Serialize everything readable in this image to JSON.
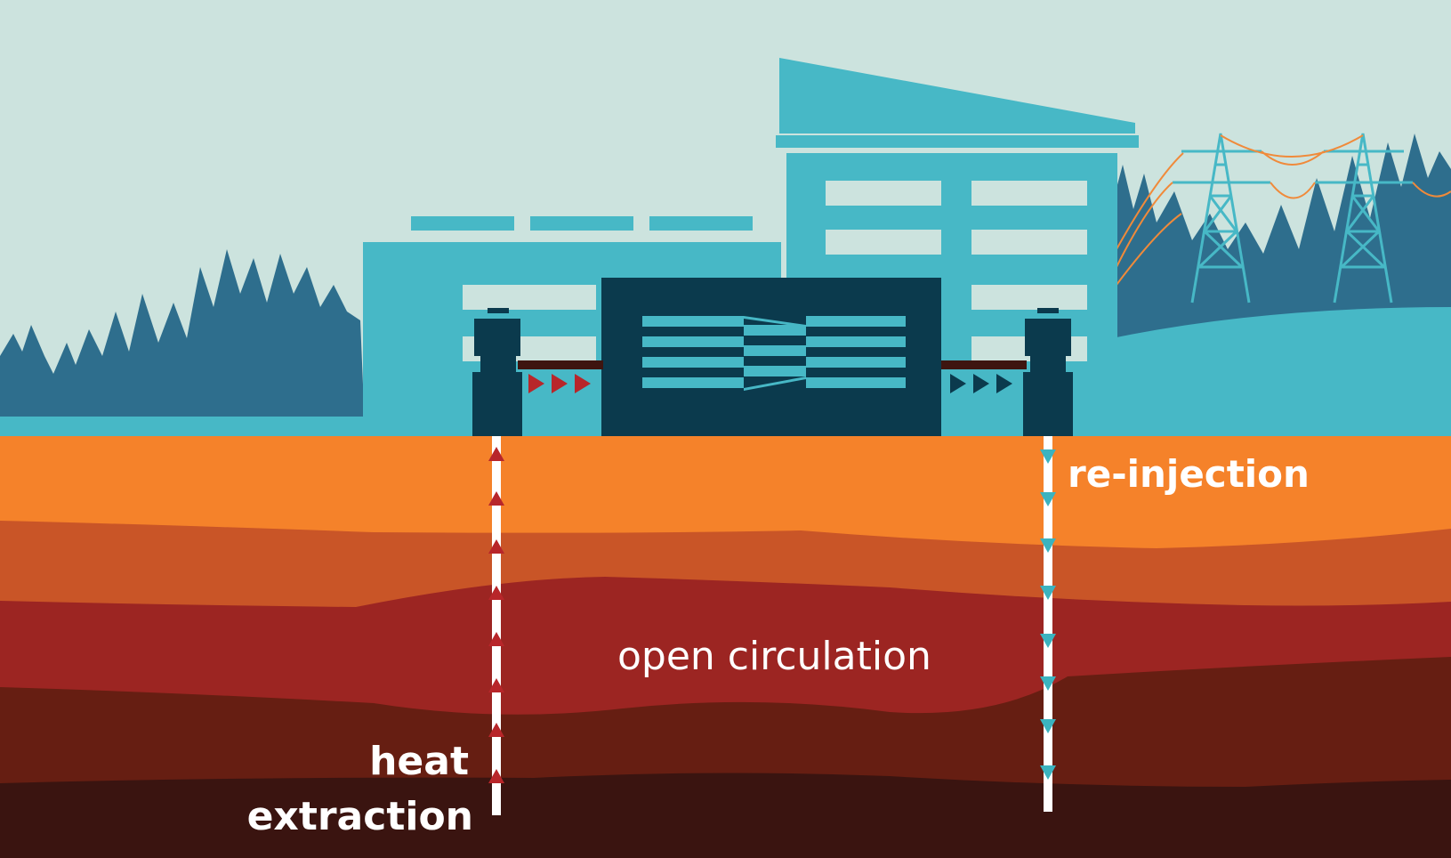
{
  "labels": {
    "reinjection": "re-injection",
    "open_circulation": "open circulation",
    "heat": "heat",
    "extraction": "extraction"
  },
  "colors": {
    "sky": "#cce3de",
    "building_light": "#47b8c6",
    "building_dark": "#0b3a4d",
    "trees": "#2e6e8d",
    "ground_top": "#f5822a",
    "ground_layer2": "#c95527",
    "ground_layer3": "#9c2522",
    "ground_layer4": "#661e12",
    "ground_bottom": "#3a1410",
    "hot_arrow": "#b8262a",
    "cold_arrow": "#3bb3bf",
    "power_line": "#f08a3a"
  }
}
